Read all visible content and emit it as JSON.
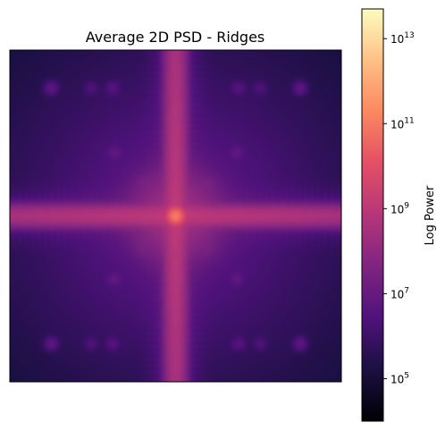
{
  "chart_data": {
    "type": "heatmap",
    "title": "Average 2D PSD - Ridges",
    "xlabel": "",
    "ylabel": "",
    "axes_ticks_visible": false,
    "grid": false,
    "colormap": "magma",
    "colorbar": {
      "label": "Log Power",
      "scale": "log",
      "vmin": 10000,
      "vmax": 50000000000000,
      "ticks": [
        {
          "value": 100000,
          "base": "10",
          "exp": "5"
        },
        {
          "value": 10000000,
          "base": "10",
          "exp": "7"
        },
        {
          "value": 1000000000,
          "base": "10",
          "exp": "9"
        },
        {
          "value": 100000000000,
          "base": "10",
          "exp": "11"
        },
        {
          "value": 10000000000000,
          "base": "10",
          "exp": "13"
        }
      ]
    },
    "spectrum": {
      "center_power": 100000000000,
      "background_power": 30000,
      "ridge_power": 1000000000,
      "ridges": [
        "horizontal",
        "vertical"
      ],
      "peaks": [
        {
          "fx": -0.75,
          "fy": -0.77,
          "power": 5000000
        },
        {
          "fx": 0.75,
          "fy": -0.77,
          "power": 5000000
        },
        {
          "fx": -0.75,
          "fy": 0.77,
          "power": 5000000
        },
        {
          "fx": 0.75,
          "fy": 0.77,
          "power": 5000000
        },
        {
          "fx": -0.37,
          "fy": -0.38,
          "power": 5000000
        },
        {
          "fx": 0.37,
          "fy": -0.38,
          "power": 5000000
        },
        {
          "fx": -0.37,
          "fy": 0.38,
          "power": 5000000
        },
        {
          "fx": 0.37,
          "fy": 0.38,
          "power": 5000000
        },
        {
          "fx": -0.38,
          "fy": -0.77,
          "power": 3000000
        },
        {
          "fx": 0.38,
          "fy": -0.77,
          "power": 3000000
        },
        {
          "fx": -0.38,
          "fy": 0.77,
          "power": 3000000
        },
        {
          "fx": 0.38,
          "fy": 0.77,
          "power": 3000000
        },
        {
          "fx": -0.51,
          "fy": -0.77,
          "power": 2000000
        },
        {
          "fx": 0.51,
          "fy": -0.77,
          "power": 2000000
        },
        {
          "fx": -0.51,
          "fy": 0.77,
          "power": 2000000
        },
        {
          "fx": 0.51,
          "fy": 0.77,
          "power": 2000000
        },
        {
          "fx": -0.2,
          "fy": -0.2,
          "power": 8000000
        },
        {
          "fx": 0.2,
          "fy": -0.2,
          "power": 8000000
        },
        {
          "fx": -0.2,
          "fy": 0.2,
          "power": 8000000
        },
        {
          "fx": 0.2,
          "fy": 0.2,
          "power": 8000000
        }
      ]
    }
  }
}
